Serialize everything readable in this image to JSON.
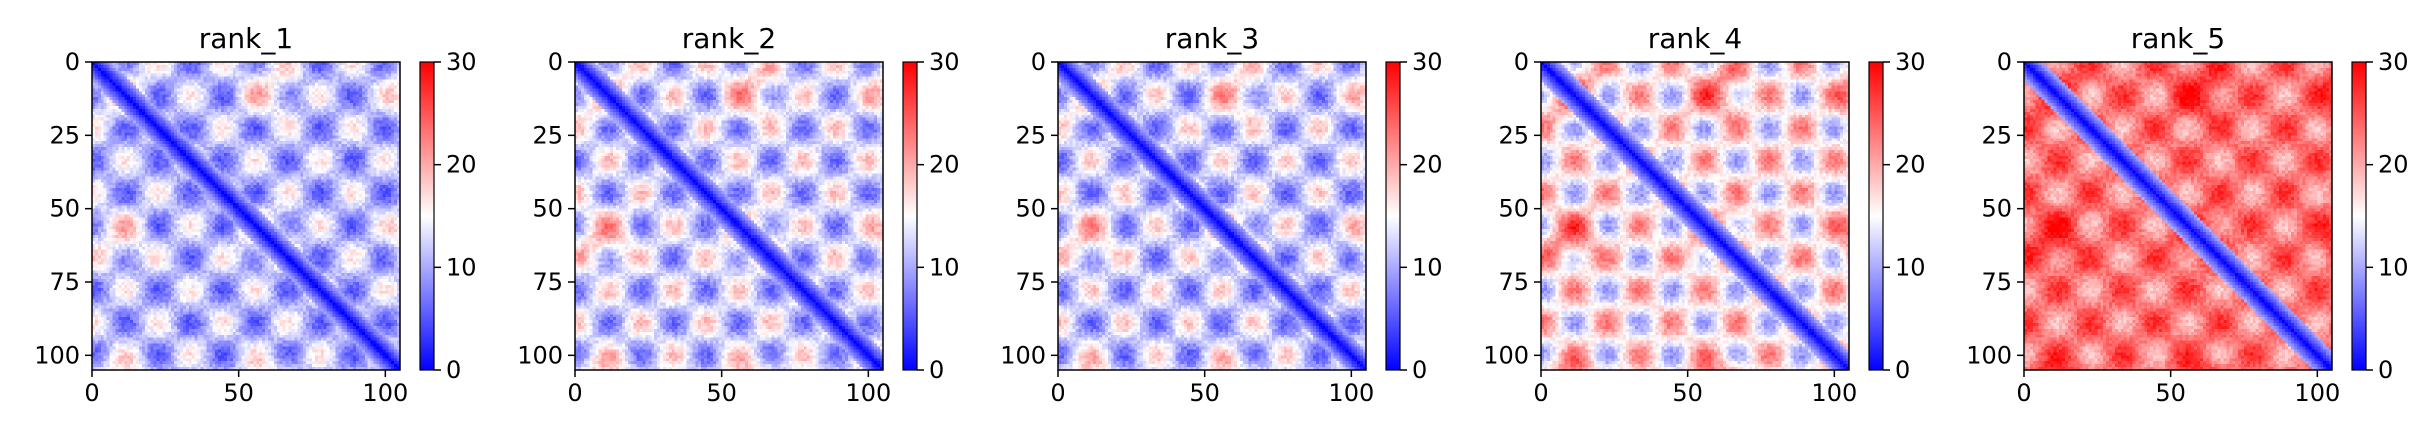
{
  "chart_data": [
    {
      "type": "heatmap",
      "title": "rank_1",
      "xlabel": "",
      "ylabel": "",
      "n": 105,
      "xlim": [
        0,
        105
      ],
      "ylim": [
        105,
        0
      ],
      "xticks": [
        0,
        50,
        100
      ],
      "yticks": [
        0,
        25,
        50,
        75,
        100
      ],
      "colorbar": {
        "min": 0,
        "max": 30,
        "ticks": [
          0,
          10,
          20,
          30
        ],
        "colormap": "bwr"
      },
      "base_distance": 11.0,
      "contrast": 1.0
    },
    {
      "type": "heatmap",
      "title": "rank_2",
      "xlabel": "",
      "ylabel": "",
      "n": 105,
      "xlim": [
        0,
        105
      ],
      "ylim": [
        105,
        0
      ],
      "xticks": [
        0,
        50,
        100
      ],
      "yticks": [
        0,
        25,
        50,
        75,
        100
      ],
      "colorbar": {
        "min": 0,
        "max": 30,
        "ticks": [
          0,
          10,
          20,
          30
        ],
        "colormap": "bwr"
      },
      "base_distance": 12.5,
      "contrast": 1.1
    },
    {
      "type": "heatmap",
      "title": "rank_3",
      "xlabel": "",
      "ylabel": "",
      "n": 105,
      "xlim": [
        0,
        105
      ],
      "ylim": [
        105,
        0
      ],
      "xticks": [
        0,
        50,
        100
      ],
      "yticks": [
        0,
        25,
        50,
        75,
        100
      ],
      "colorbar": {
        "min": 0,
        "max": 30,
        "ticks": [
          0,
          10,
          20,
          30
        ],
        "colormap": "bwr"
      },
      "base_distance": 12.0,
      "contrast": 1.1
    },
    {
      "type": "heatmap",
      "title": "rank_4",
      "xlabel": "",
      "ylabel": "",
      "n": 105,
      "xlim": [
        0,
        105
      ],
      "ylim": [
        105,
        0
      ],
      "xticks": [
        0,
        50,
        100
      ],
      "yticks": [
        0,
        25,
        50,
        75,
        100
      ],
      "colorbar": {
        "min": 0,
        "max": 30,
        "ticks": [
          0,
          10,
          20,
          30
        ],
        "colormap": "bwr"
      },
      "base_distance": 16.0,
      "contrast": 1.2
    },
    {
      "type": "heatmap",
      "title": "rank_5",
      "xlabel": "",
      "ylabel": "",
      "n": 105,
      "xlim": [
        0,
        105
      ],
      "ylim": [
        105,
        0
      ],
      "xticks": [
        0,
        50,
        100
      ],
      "yticks": [
        0,
        25,
        50,
        75,
        100
      ],
      "colorbar": {
        "min": 0,
        "max": 30,
        "ticks": [
          0,
          10,
          20,
          30
        ],
        "colormap": "bwr"
      },
      "base_distance": 23.0,
      "contrast": 0.8
    }
  ],
  "colors": {
    "low": "#0000ff",
    "mid": "#ffffff",
    "high": "#ff0000",
    "axis": "#000000"
  }
}
